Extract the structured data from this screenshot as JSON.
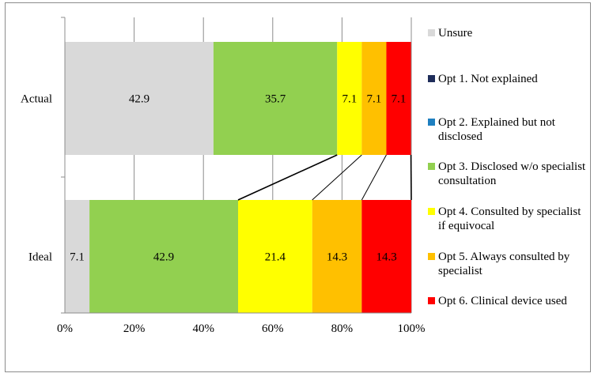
{
  "chart_data": {
    "type": "bar",
    "orientation": "horizontal",
    "stacked": true,
    "categories": [
      "Actual",
      "Ideal"
    ],
    "xlim": [
      0,
      100
    ],
    "x_ticks": [
      "0%",
      "20%",
      "40%",
      "60%",
      "80%",
      "100%"
    ],
    "grid": true,
    "legend_position": "right",
    "series": [
      {
        "name": "Unsure",
        "color": "#d9d9d9",
        "values": [
          42.9,
          7.1
        ],
        "labels": [
          "42.9",
          "7.1"
        ]
      },
      {
        "name": "Opt 1. Not explained",
        "color": "#1f2d5a",
        "values": [
          0,
          0
        ],
        "labels": [
          "",
          ""
        ]
      },
      {
        "name": "Opt 2. Explained but not disclosed",
        "color": "#1f7fc0",
        "values": [
          0,
          0
        ],
        "labels": [
          "",
          ""
        ]
      },
      {
        "name": "Opt 3. Disclosed w/o specialist consultation",
        "color": "#92d050",
        "values": [
          35.7,
          42.9
        ],
        "labels": [
          "35.7",
          "42.9"
        ]
      },
      {
        "name": "Opt 4. Consulted by specialist if equivocal",
        "color": "#ffff00",
        "values": [
          7.1,
          21.4
        ],
        "labels": [
          "7.1",
          "21.4"
        ]
      },
      {
        "name": "Opt 5. Always consulted by specialist",
        "color": "#ffc000",
        "values": [
          7.1,
          14.3
        ],
        "labels": [
          "7.1",
          "14.3"
        ]
      },
      {
        "name": "Opt 6. Clinical device used",
        "color": "#ff0000",
        "values": [
          7.1,
          14.3
        ],
        "labels": [
          "7.1",
          "14.3"
        ]
      }
    ],
    "series_lines": true
  }
}
